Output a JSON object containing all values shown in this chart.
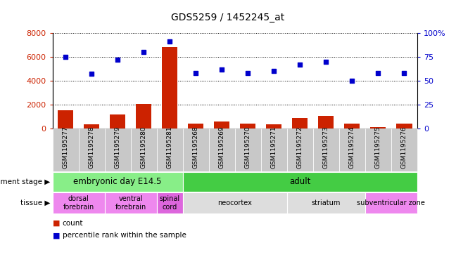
{
  "title": "GDS5259 / 1452245_at",
  "samples": [
    "GSM1195277",
    "GSM1195278",
    "GSM1195279",
    "GSM1195280",
    "GSM1195281",
    "GSM1195268",
    "GSM1195269",
    "GSM1195270",
    "GSM1195271",
    "GSM1195272",
    "GSM1195273",
    "GSM1195274",
    "GSM1195275",
    "GSM1195276"
  ],
  "counts": [
    1500,
    350,
    1150,
    2050,
    6800,
    400,
    550,
    380,
    350,
    850,
    1050,
    380,
    130,
    400
  ],
  "percentiles": [
    75,
    57,
    72,
    80,
    91,
    58,
    62,
    58,
    60,
    67,
    70,
    50,
    58,
    58
  ],
  "ylim_left": [
    0,
    8000
  ],
  "ylim_right": [
    0,
    100
  ],
  "yticks_left": [
    0,
    2000,
    4000,
    6000,
    8000
  ],
  "yticks_right": [
    0,
    25,
    50,
    75,
    100
  ],
  "bar_color": "#cc2200",
  "dot_color": "#0000cc",
  "dev_stage_groups": [
    {
      "label": "embryonic day E14.5",
      "start": 0,
      "end": 5,
      "color": "#88ee88"
    },
    {
      "label": "adult",
      "start": 5,
      "end": 14,
      "color": "#44cc44"
    }
  ],
  "tissue_groups": [
    {
      "label": "dorsal\nforebrain",
      "start": 0,
      "end": 2,
      "color": "#ee88ee"
    },
    {
      "label": "ventral\nforebrain",
      "start": 2,
      "end": 4,
      "color": "#ee88ee"
    },
    {
      "label": "spinal\ncord",
      "start": 4,
      "end": 5,
      "color": "#dd66dd"
    },
    {
      "label": "neocortex",
      "start": 5,
      "end": 9,
      "color": "#dddddd"
    },
    {
      "label": "striatum",
      "start": 9,
      "end": 12,
      "color": "#dddddd"
    },
    {
      "label": "subventricular zone",
      "start": 12,
      "end": 14,
      "color": "#ee88ee"
    }
  ],
  "background_color": "#ffffff",
  "bar_color_legend": "#cc2200",
  "dot_color_legend": "#0000cc",
  "xlabel_area_color": "#c8c8c8",
  "left_tick_color": "#cc2200",
  "right_tick_color": "#0000cc"
}
